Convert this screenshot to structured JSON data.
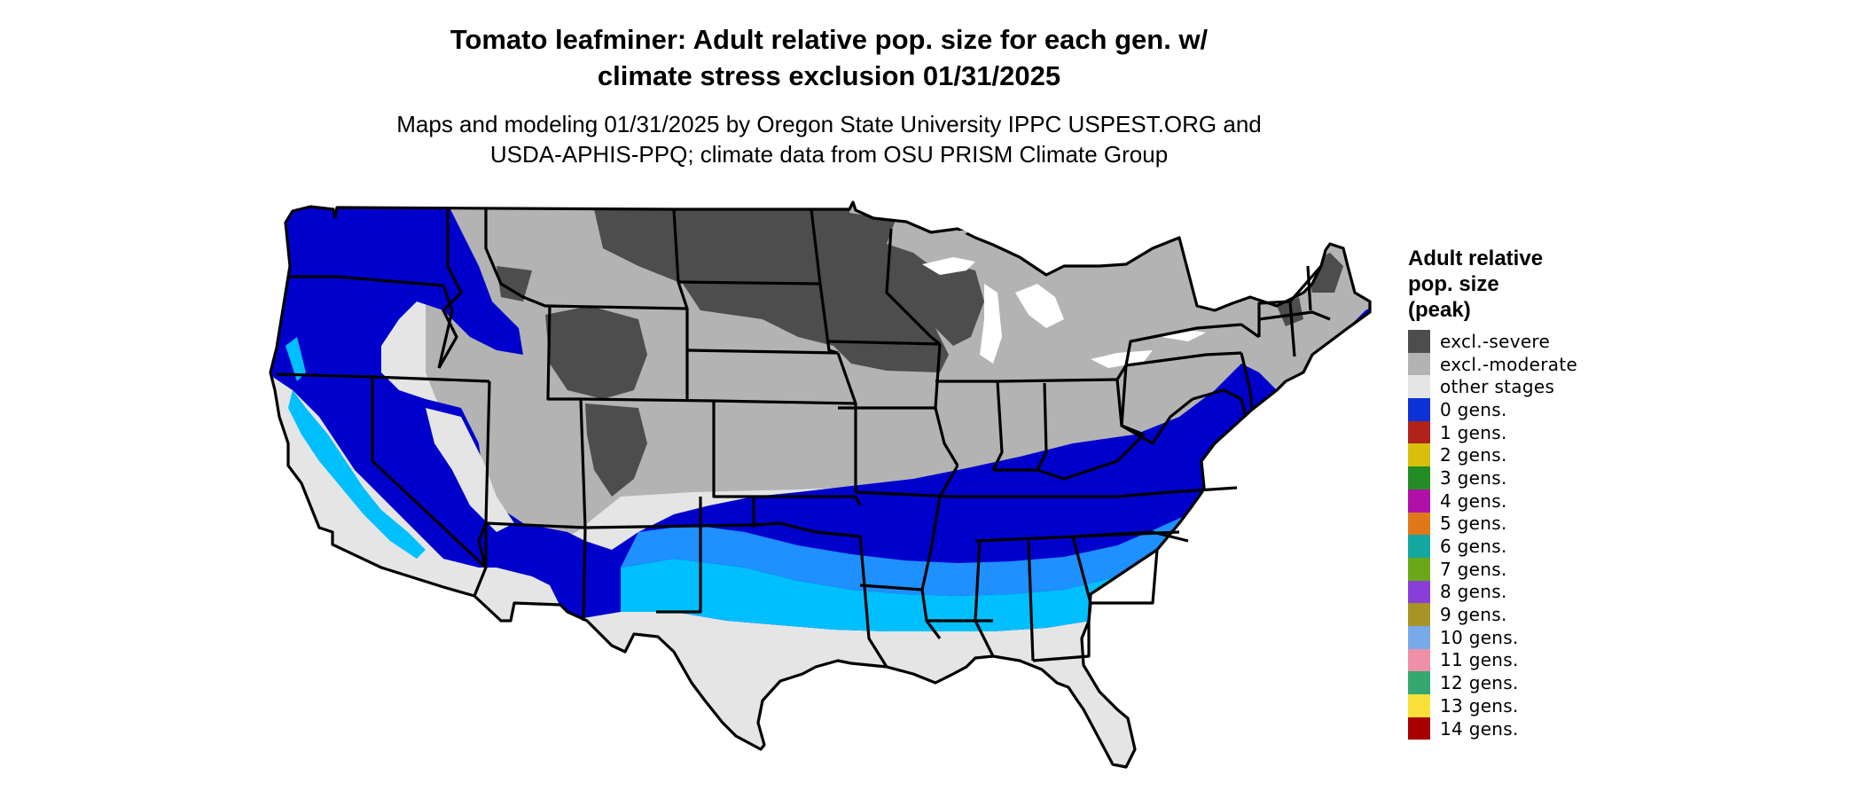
{
  "title_line1": "Tomato leafminer: Adult relative pop. size for each gen. w/",
  "title_line2": "climate stress exclusion 01/31/2025",
  "subtitle_line1": "Maps and modeling 01/31/2025 by Oregon State University IPPC USPEST.ORG and",
  "subtitle_line2": "USDA-APHIS-PPQ; climate data from OSU PRISM Climate Group",
  "legend": {
    "title_lines": [
      "Adult relative",
      "pop. size",
      "(peak)"
    ],
    "items": [
      {
        "label": "excl.-severe",
        "color": "#4d4d4d"
      },
      {
        "label": "excl.-moderate",
        "color": "#b3b3b3"
      },
      {
        "label": "other stages",
        "color": "#e5e5e5"
      },
      {
        "label": "0 gens.",
        "color": "#0a32d6"
      },
      {
        "label": "1 gens.",
        "color": "#b0231b"
      },
      {
        "label": "2 gens.",
        "color": "#d9bf0c"
      },
      {
        "label": "3 gens.",
        "color": "#248c24"
      },
      {
        "label": "4 gens.",
        "color": "#b010a8"
      },
      {
        "label": "5 gens.",
        "color": "#e0781a"
      },
      {
        "label": "6 gens.",
        "color": "#12a8a0"
      },
      {
        "label": "7 gens.",
        "color": "#6aa81a"
      },
      {
        "label": "8 gens.",
        "color": "#8a3ed8"
      },
      {
        "label": "9 gens.",
        "color": "#a89424"
      },
      {
        "label": "10 gens.",
        "color": "#78aaea"
      },
      {
        "label": "11 gens.",
        "color": "#ee90a8"
      },
      {
        "label": "12 gens.",
        "color": "#34a870"
      },
      {
        "label": "13 gens.",
        "color": "#fce03a"
      },
      {
        "label": "14 gens.",
        "color": "#a80000"
      }
    ]
  },
  "map_colors": {
    "state_border": "#000000",
    "severe": "#4d4d4d",
    "moderate": "#b3b3b3",
    "other": "#e5e5e5",
    "gens0_dark": "#0000cd",
    "gens0_mid": "#0a50e6",
    "gens0_light": "#1e90ff",
    "gens0_cyan": "#00bfff"
  }
}
